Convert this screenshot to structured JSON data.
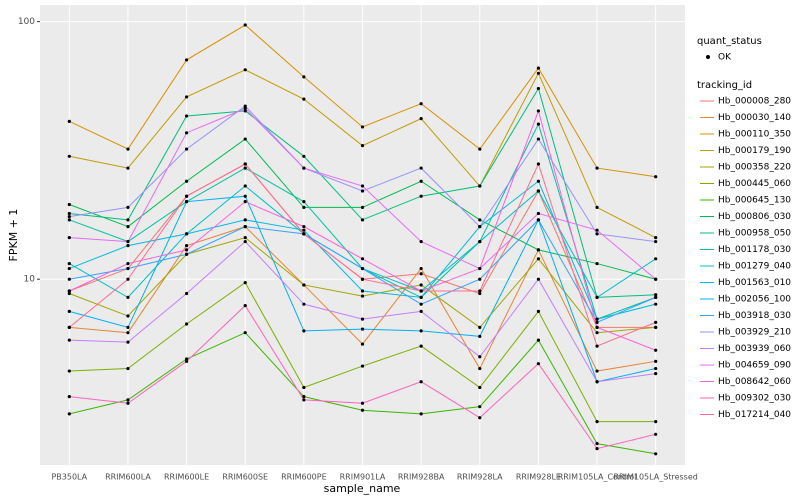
{
  "chart_data": {
    "type": "line",
    "log_y": true,
    "grid": true,
    "x_label": "sample_name",
    "y_label": "FPKM + 1",
    "categories": [
      "PB350LA",
      "RRIM600LA",
      "RRIM600LE",
      "RRIM600SE",
      "RRIM600PE",
      "RRIM901LA",
      "RRIM928BA",
      "RRIM928LA",
      "RRIM928LE",
      "RRIM105LA_Control",
      "RRIM105LA_Stressed"
    ],
    "ylim": [
      1.9,
      116
    ],
    "yticks": [
      10,
      100
    ],
    "shape_legend": {
      "title": "quant_status",
      "labels": [
        "OK"
      ]
    },
    "legend_title": "tracking_id",
    "series": [
      {
        "name": "Hb_000008_280",
        "color": "#F8766D",
        "values": [
          9,
          11,
          21,
          28,
          15,
          10,
          10.5,
          8.8,
          22,
          6.5,
          6.5
        ]
      },
      {
        "name": "Hb_000030_140",
        "color": "#EA8331",
        "values": [
          6.5,
          6.2,
          13.5,
          16,
          9.5,
          5.6,
          11,
          4.5,
          13,
          4.4,
          4.8
        ]
      },
      {
        "name": "Hb_000110_350",
        "color": "#D89000",
        "values": [
          41,
          32,
          71,
          97,
          61,
          39,
          48,
          32,
          66,
          27,
          25
        ]
      },
      {
        "name": "Hb_000179_190",
        "color": "#C09B00",
        "values": [
          30,
          27,
          51,
          65,
          50,
          33,
          42,
          23,
          63,
          19,
          14.5
        ]
      },
      {
        "name": "Hb_000358_220",
        "color": "#A3A500",
        "values": [
          8.8,
          7.2,
          12.5,
          14.5,
          9.5,
          8.6,
          9.5,
          6.5,
          12,
          6.2,
          6.5
        ]
      },
      {
        "name": "Hb_000445_060",
        "color": "#7CAE00",
        "values": [
          4.4,
          4.5,
          6.7,
          9.7,
          3.8,
          4.6,
          5.5,
          3.8,
          7.5,
          2.8,
          2.8
        ]
      },
      {
        "name": "Hb_000645_130",
        "color": "#39B600",
        "values": [
          3.0,
          3.4,
          4.9,
          6.2,
          3.5,
          3.1,
          3.0,
          3.2,
          5.8,
          2.3,
          2.1
        ]
      },
      {
        "name": "Hb_000806_030",
        "color": "#00BB4E",
        "values": [
          19.5,
          16,
          24,
          35,
          19,
          19,
          24,
          17,
          13,
          11.5,
          10
        ]
      },
      {
        "name": "Hb_000958_050",
        "color": "#00BF7D",
        "values": [
          18,
          17,
          43,
          45,
          30,
          17,
          21,
          23,
          55,
          8.5,
          8.7
        ]
      },
      {
        "name": "Hb_001178_030",
        "color": "#00C1A3",
        "values": [
          17,
          14,
          20,
          27,
          20,
          11,
          8.5,
          14,
          40,
          7,
          8.5
        ]
      },
      {
        "name": "Hb_001279_040",
        "color": "#00BFC4",
        "values": [
          11.5,
          8.5,
          15,
          23,
          15,
          11,
          9,
          14,
          22,
          8.5,
          12
        ]
      },
      {
        "name": "Hb_001563_010",
        "color": "#00BAE0",
        "values": [
          11,
          13.5,
          15,
          17,
          15.5,
          9,
          8.5,
          16,
          24,
          7,
          8
        ]
      },
      {
        "name": "Hb_002056_100",
        "color": "#00B0F6",
        "values": [
          7.5,
          6.5,
          20,
          21,
          6.3,
          6.4,
          6.3,
          6,
          17,
          4,
          4.5
        ]
      },
      {
        "name": "Hb_003918_030",
        "color": "#35A2FF",
        "values": [
          10,
          11,
          12.5,
          16,
          15,
          11,
          8,
          10,
          17,
          6.8,
          8.5
        ]
      },
      {
        "name": "Hb_003929_210",
        "color": "#9590FF",
        "values": [
          17.5,
          19,
          32,
          47,
          27,
          22,
          27,
          16,
          35,
          15,
          14
        ]
      },
      {
        "name": "Hb_003939_060",
        "color": "#C77CFF",
        "values": [
          5.8,
          5.7,
          8.8,
          14,
          8,
          7,
          7.5,
          5,
          10,
          4,
          4.3
        ]
      },
      {
        "name": "Hb_004659_090",
        "color": "#E76BF3",
        "values": [
          14.5,
          14,
          37,
          46,
          27,
          23,
          14,
          11,
          18,
          15.5,
          10
        ]
      },
      {
        "name": "Hb_008642_060",
        "color": "#FA62DB",
        "values": [
          9,
          11.5,
          13,
          20,
          16,
          12,
          9,
          11,
          45,
          6.5,
          5.3
        ]
      },
      {
        "name": "Hb_009302_030",
        "color": "#FF62BC",
        "values": [
          3.5,
          3.3,
          4.8,
          7.9,
          3.4,
          3.3,
          4,
          2.9,
          4.7,
          2.2,
          2.5
        ]
      },
      {
        "name": "Hb_017214_040",
        "color": "#FF6C91",
        "values": [
          6.5,
          10,
          21,
          28,
          15,
          10,
          9,
          9,
          28,
          5.5,
          6.8
        ]
      }
    ]
  }
}
